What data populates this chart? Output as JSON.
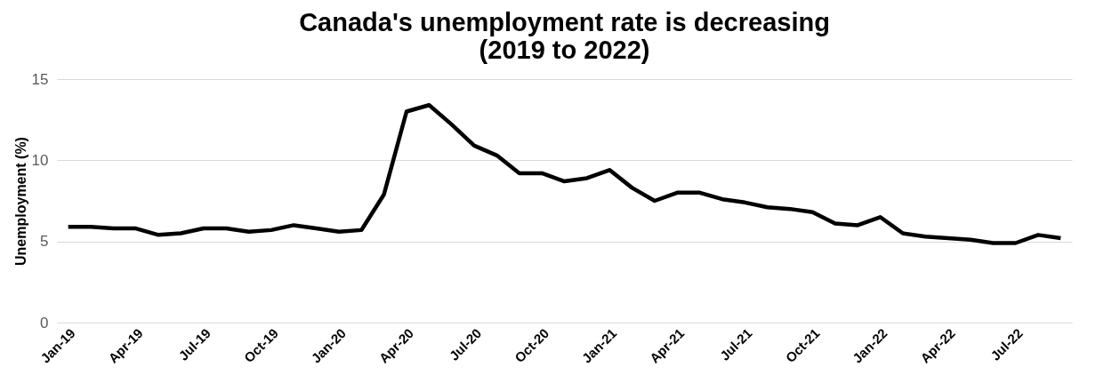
{
  "chart_data": {
    "type": "line",
    "title": "Canada's unemployment rate is decreasing\n(2019 to 2022)",
    "ylabel": "Unemployment (%)",
    "categories": [
      "Jan-19",
      null,
      null,
      "Apr-19",
      null,
      null,
      "Jul-19",
      null,
      null,
      "Oct-19",
      null,
      null,
      "Jan-20",
      null,
      null,
      "Apr-20",
      null,
      null,
      "Jul-20",
      null,
      null,
      "Oct-20",
      null,
      null,
      "Jan-21",
      null,
      null,
      "Apr-21",
      null,
      null,
      "Jul-21",
      null,
      null,
      "Oct-21",
      null,
      null,
      "Jan-22",
      null,
      null,
      "Apr-22",
      null,
      null,
      "Jul-22",
      null,
      null
    ],
    "series": [
      {
        "color": "#000000",
        "values": [
          5.9,
          5.9,
          5.8,
          5.8,
          5.4,
          5.5,
          5.8,
          5.8,
          5.6,
          5.7,
          6.0,
          5.8,
          5.6,
          5.7,
          7.9,
          13.0,
          13.4,
          12.2,
          10.9,
          10.3,
          9.2,
          9.2,
          8.7,
          8.9,
          9.4,
          8.3,
          7.5,
          8.0,
          8.0,
          7.6,
          7.4,
          7.1,
          7.0,
          6.8,
          6.1,
          6.0,
          6.5,
          5.5,
          5.3,
          5.2,
          5.1,
          4.9,
          4.9,
          5.4,
          5.2
        ]
      }
    ],
    "ylim": [
      0,
      15
    ],
    "yticks": [
      0,
      5,
      10,
      15
    ],
    "grid": "y",
    "marker": "none",
    "line_style": "solid"
  }
}
